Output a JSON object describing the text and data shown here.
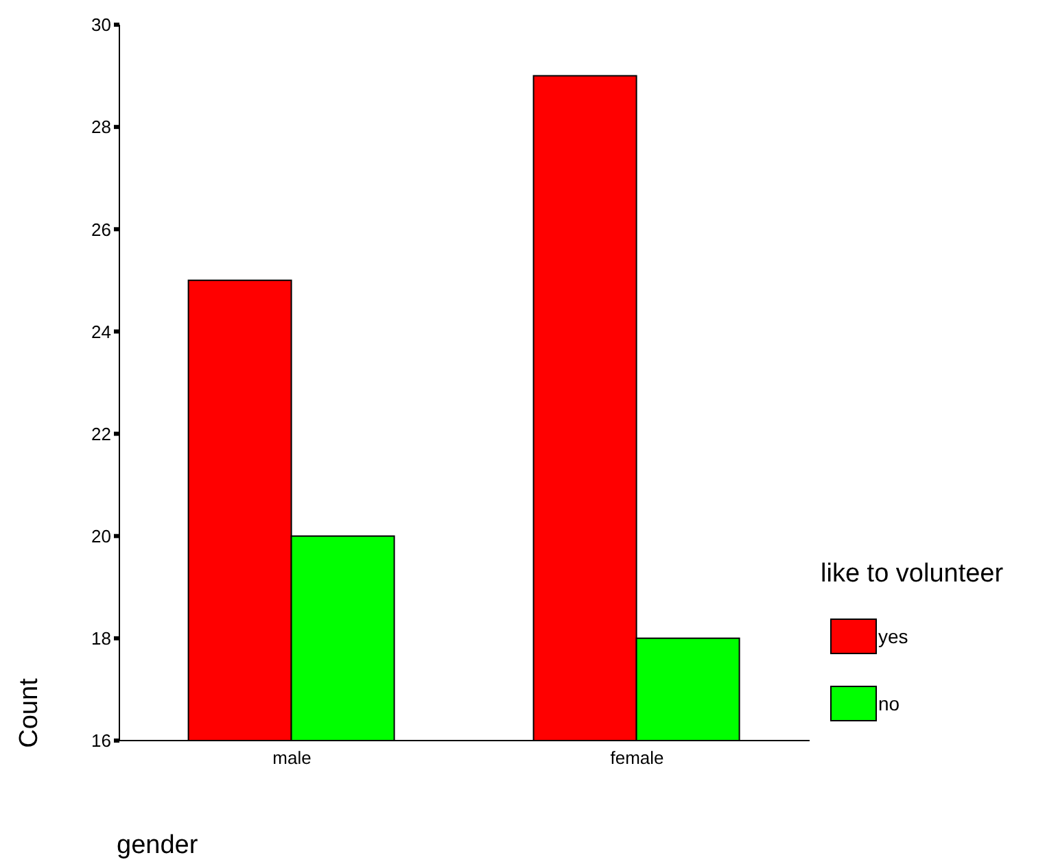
{
  "chart_data": {
    "type": "bar",
    "xlabel": "gender",
    "ylabel": "Count",
    "legend_title": "like to volunteer",
    "categories": [
      "male",
      "female"
    ],
    "series": [
      {
        "name": "yes",
        "color": "#ff0000",
        "values": [
          25,
          29
        ]
      },
      {
        "name": "no",
        "color": "#00ff00",
        "values": [
          20,
          18
        ]
      }
    ],
    "ylim": [
      16,
      30
    ],
    "yticks": [
      16,
      18,
      20,
      22,
      24,
      26,
      28,
      30
    ],
    "grid": false,
    "legend": "right"
  }
}
